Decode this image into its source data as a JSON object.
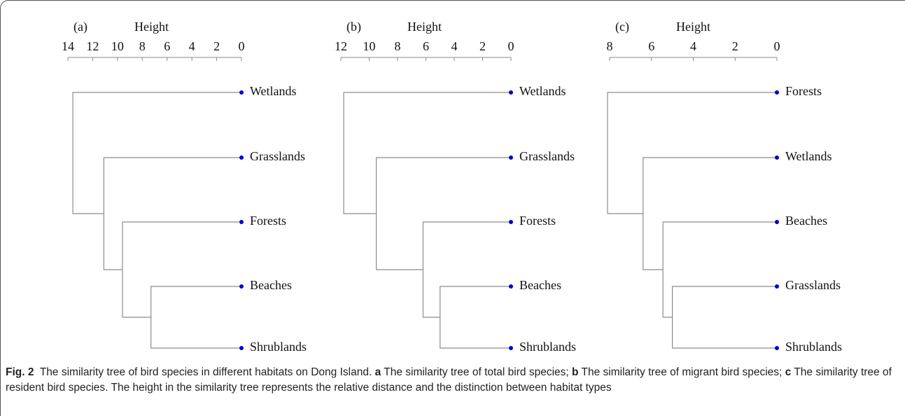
{
  "chart_data": [
    {
      "type": "dendrogram",
      "label": "(a)",
      "xlabel": "Height",
      "xlim": [
        14,
        0
      ],
      "xticks": [
        14,
        12,
        10,
        8,
        6,
        4,
        2,
        0
      ],
      "leaves": [
        "Wetlands",
        "Grasslands",
        "Forests",
        "Beaches",
        "Shrublands"
      ],
      "heights": [
        13.6,
        11.1,
        9.6,
        7.3
      ],
      "color": "#0000cc",
      "line_color": "#8c8c8c"
    },
    {
      "type": "dendrogram",
      "label": "(b)",
      "xlabel": "Height",
      "xlim": [
        12,
        0
      ],
      "xticks": [
        12,
        10,
        8,
        6,
        4,
        2,
        0
      ],
      "leaves": [
        "Wetlands",
        "Grasslands",
        "Forests",
        "Beaches",
        "Shrublands"
      ],
      "heights": [
        11.8,
        9.5,
        6.2,
        5.0
      ],
      "color": "#0000cc",
      "line_color": "#8c8c8c"
    },
    {
      "type": "dendrogram",
      "label": "(c)",
      "xlabel": "Height",
      "xlim": [
        8,
        0
      ],
      "xticks": [
        8,
        6,
        4,
        2,
        0
      ],
      "leaves": [
        "Forests",
        "Wetlands",
        "Beaches",
        "Grasslands",
        "Shrublands"
      ],
      "heights": [
        8.1,
        6.4,
        5.45,
        5.0
      ],
      "color": "#0000cc",
      "line_color": "#8c8c8c"
    }
  ],
  "caption": {
    "label": "Fig. 2",
    "text": "The similarity tree of bird species in different habitats on Dong Island.",
    "items": [
      {
        "key": "a",
        "text": "The similarity tree of total bird species;"
      },
      {
        "key": "b",
        "text": "The similarity tree of migrant bird species;"
      },
      {
        "key": "c",
        "text": "The similarity tree of resident bird species."
      }
    ],
    "note": "The height in the similarity tree represents the relative distance and the distinction between habitat types"
  }
}
